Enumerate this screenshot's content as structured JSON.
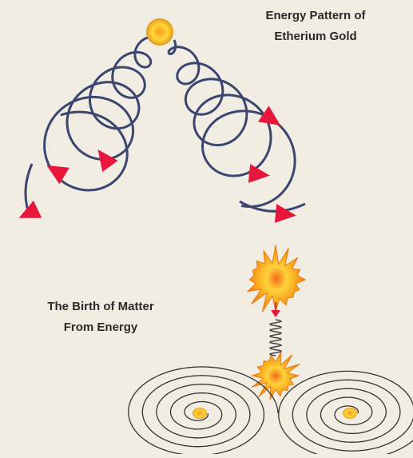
{
  "top_caption": {
    "lines": [
      "Energy Pattern of",
      "Etherium Gold"
    ]
  },
  "bottom_caption": {
    "lines": [
      "The Birth of Matter",
      "From Energy"
    ]
  }
}
